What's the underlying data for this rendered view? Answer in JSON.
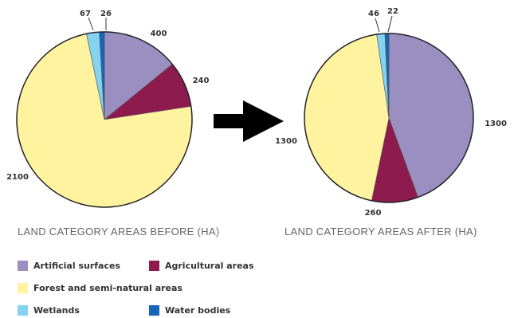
{
  "chart_data": [
    {
      "type": "pie",
      "title": "LAND CATEGORY AREAS BEFORE (HA)",
      "categories": [
        "Artificial surfaces",
        "Agricultural areas",
        "Forest and semi-natural areas",
        "Wetlands",
        "Water bodies"
      ],
      "values": [
        400,
        240,
        2100,
        67,
        26
      ],
      "value_labels": [
        "400",
        "240",
        "2100",
        "67",
        "26"
      ]
    },
    {
      "type": "pie",
      "title": "LAND CATEGORY AREAS AFTER (HA)",
      "categories": [
        "Artificial surfaces",
        "Agricultural areas",
        "Forest and semi-natural areas",
        "Wetlands",
        "Water bodies"
      ],
      "values": [
        1300,
        260,
        1300,
        46,
        22
      ],
      "value_labels": [
        "1300",
        "260",
        "1300",
        "46",
        "22"
      ]
    }
  ],
  "legend": [
    {
      "label": "Artificial surfaces",
      "color": "#9a8fc0"
    },
    {
      "label": "Agricultural areas",
      "color": "#8e1b4e"
    },
    {
      "label": "Forest and semi-natural areas",
      "color": "#fff3a0"
    },
    {
      "label": "Wetlands",
      "color": "#82d2f0"
    },
    {
      "label": "Water bodies",
      "color": "#1565b8"
    }
  ],
  "arrow_icon": "right-arrow-icon"
}
